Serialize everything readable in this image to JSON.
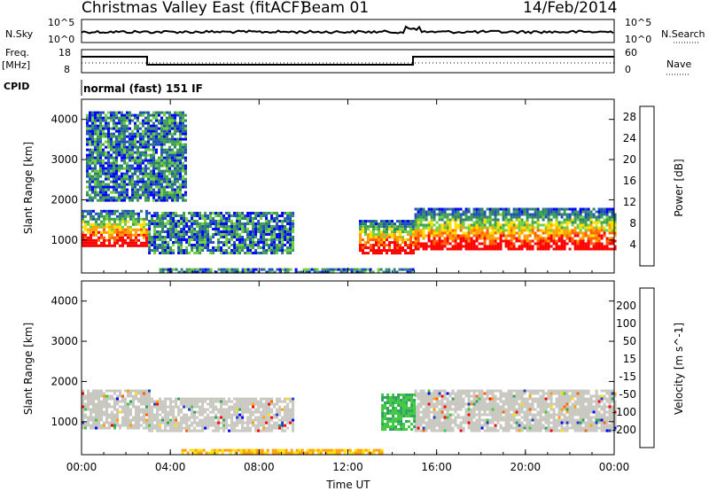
{
  "header": {
    "station": "Christmas Valley East (fitACF)",
    "beam": "Beam 01",
    "date": "14/Feb/2014"
  },
  "strip": {
    "nsky_label": "N.Sky",
    "nsky_ticks": [
      "10^5",
      "10^0"
    ],
    "nsearch_label": "N.Search",
    "nsearch_ticks": [
      "10^5",
      "10^0"
    ],
    "freq_label_1": "Freq.",
    "freq_label_2": "[MHz]",
    "freq_ticks": [
      "18",
      "8"
    ],
    "nave_label": "Nave",
    "nave_ticks": [
      "60",
      "0"
    ],
    "cpid_label": "CPID",
    "cpid_value": "normal (fast) 151 IF"
  },
  "colors": {
    "power": [
      "#0000ff",
      "#2050c0",
      "#308070",
      "#40a050",
      "#70d040",
      "#ffe000",
      "#ffa000",
      "#ff6000",
      "#ff0000"
    ],
    "velocity": [
      "#ff0000",
      "#ff6000",
      "#ffa000",
      "#ffe000",
      "#c8c8c0",
      "#40c840",
      "#30a060",
      "#2040c0",
      "#0000ff"
    ]
  },
  "chart_data": [
    {
      "type": "heatmap",
      "name": "Power",
      "xlabel": "",
      "ylabel": "Slant Range [km]",
      "x_ticks": [
        "00:00",
        "04:00",
        "08:00",
        "12:00",
        "16:00",
        "20:00",
        "00:00"
      ],
      "y_ticks": [
        1000,
        2000,
        3000,
        4000
      ],
      "ylim": [
        180,
        4500
      ],
      "colorbar": {
        "label": "Power [dB]",
        "ticks": [
          "4",
          "8",
          "12",
          "16",
          "20",
          "24",
          "28"
        ],
        "range": [
          0,
          30
        ]
      },
      "regions": [
        {
          "t0": 0.0,
          "t1": 2.9,
          "r0": 850,
          "r1": 1750,
          "level": "strong"
        },
        {
          "t0": 3.0,
          "t1": 9.5,
          "r0": 700,
          "r1": 1700,
          "level": "weak"
        },
        {
          "t0": 12.5,
          "t1": 15.0,
          "r0": 700,
          "r1": 1500,
          "level": "strong"
        },
        {
          "t0": 15.0,
          "t1": 24.0,
          "r0": 750,
          "r1": 1800,
          "level": "strong"
        },
        {
          "t0": 3.5,
          "t1": 15.0,
          "r0": 200,
          "r1": 300,
          "level": "weak"
        },
        {
          "t0": 0.2,
          "t1": 4.7,
          "r0": 2000,
          "r1": 4200,
          "level": "weak"
        }
      ]
    },
    {
      "type": "heatmap",
      "name": "Velocity",
      "xlabel": "Time UT",
      "ylabel": "Slant Range [km]",
      "x_ticks": [
        "00:00",
        "04:00",
        "08:00",
        "12:00",
        "16:00",
        "20:00",
        "00:00"
      ],
      "y_ticks": [
        1000,
        2000,
        3000,
        4000
      ],
      "ylim": [
        180,
        4500
      ],
      "colorbar": {
        "label": "Velocity [m s^-1]",
        "ticks": [
          "200",
          "100",
          "50",
          "15",
          "-15",
          "-50",
          "-100",
          "-200"
        ],
        "range": [
          -250,
          250
        ]
      },
      "regions": [
        {
          "t0": 0.0,
          "t1": 3.0,
          "r0": 850,
          "r1": 1800,
          "level": "ground"
        },
        {
          "t0": 15.0,
          "t1": 24.0,
          "r0": 800,
          "r1": 1800,
          "level": "ground"
        },
        {
          "t0": 3.0,
          "t1": 9.5,
          "r0": 800,
          "r1": 1600,
          "level": "ground"
        },
        {
          "t0": 4.5,
          "t1": 13.5,
          "r0": 200,
          "r1": 320,
          "level": "negative"
        },
        {
          "t0": 13.5,
          "t1": 15.0,
          "r0": 800,
          "r1": 1700,
          "level": "positive"
        }
      ]
    }
  ]
}
